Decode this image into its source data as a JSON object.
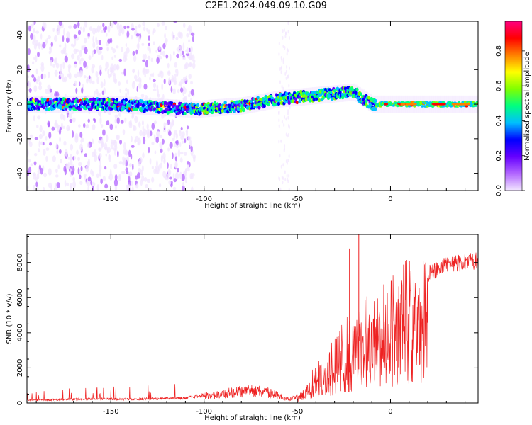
{
  "title": "C2E1.2024.049.09.10.G09",
  "chart_data": [
    {
      "type": "heatmap",
      "xlabel": "Height of straight line (km)",
      "ylabel": "Frequency (Hz)",
      "xlim": [
        -195,
        47
      ],
      "ylim": [
        -50,
        48
      ],
      "xticks": [
        -150,
        -100,
        -50,
        0
      ],
      "yticks": [
        -40,
        -20,
        0,
        20,
        40
      ],
      "colorbar": {
        "label": "Normalized spectral amplitude",
        "range": [
          0,
          0.97
        ],
        "ticks": [
          0.0,
          0.2,
          0.4,
          0.6,
          0.8
        ],
        "colors": [
          "#f2e6ff",
          "#b266ff",
          "#6600ff",
          "#0000ff",
          "#00bfff",
          "#00ff80",
          "#80ff00",
          "#ffff00",
          "#ff8000",
          "#ff0000",
          "#ff0080"
        ]
      },
      "ridge": [
        {
          "x": -190,
          "y": 0
        },
        {
          "x": -150,
          "y": 0
        },
        {
          "x": -105,
          "y": -3
        },
        {
          "x": -80,
          "y": -1
        },
        {
          "x": -60,
          "y": 3
        },
        {
          "x": -40,
          "y": 5
        },
        {
          "x": -20,
          "y": 7
        },
        {
          "x": -10,
          "y": 0
        },
        {
          "x": 0,
          "y": 0
        },
        {
          "x": 45,
          "y": 0
        }
      ]
    },
    {
      "type": "line",
      "xlabel": "Height of straight line (km)",
      "ylabel": "SNR (10 * v/v)",
      "xlim": [
        -195,
        47
      ],
      "ylim": [
        0,
        9600
      ],
      "xticks": [
        -150,
        -100,
        -50,
        0
      ],
      "yticks": [
        0,
        2000,
        4000,
        6000,
        8000
      ],
      "color": "#ee2222",
      "envelope": [
        {
          "x": -195,
          "y": 200
        },
        {
          "x": -160,
          "y": 300
        },
        {
          "x": -140,
          "y": 280
        },
        {
          "x": -110,
          "y": 350
        },
        {
          "x": -100,
          "y": 600
        },
        {
          "x": -85,
          "y": 900
        },
        {
          "x": -75,
          "y": 1100
        },
        {
          "x": -65,
          "y": 900
        },
        {
          "x": -55,
          "y": 300
        },
        {
          "x": -48,
          "y": 600
        },
        {
          "x": -40,
          "y": 1800
        },
        {
          "x": -30,
          "y": 3000
        },
        {
          "x": -20,
          "y": 4500
        },
        {
          "x": -10,
          "y": 5200
        },
        {
          "x": 0,
          "y": 5800
        },
        {
          "x": 10,
          "y": 6800
        },
        {
          "x": 20,
          "y": 7800
        },
        {
          "x": 30,
          "y": 8400
        },
        {
          "x": 47,
          "y": 8600
        }
      ],
      "peaks": [
        {
          "x": -17,
          "y": 9600
        },
        {
          "x": -22,
          "y": 8800
        }
      ]
    }
  ]
}
